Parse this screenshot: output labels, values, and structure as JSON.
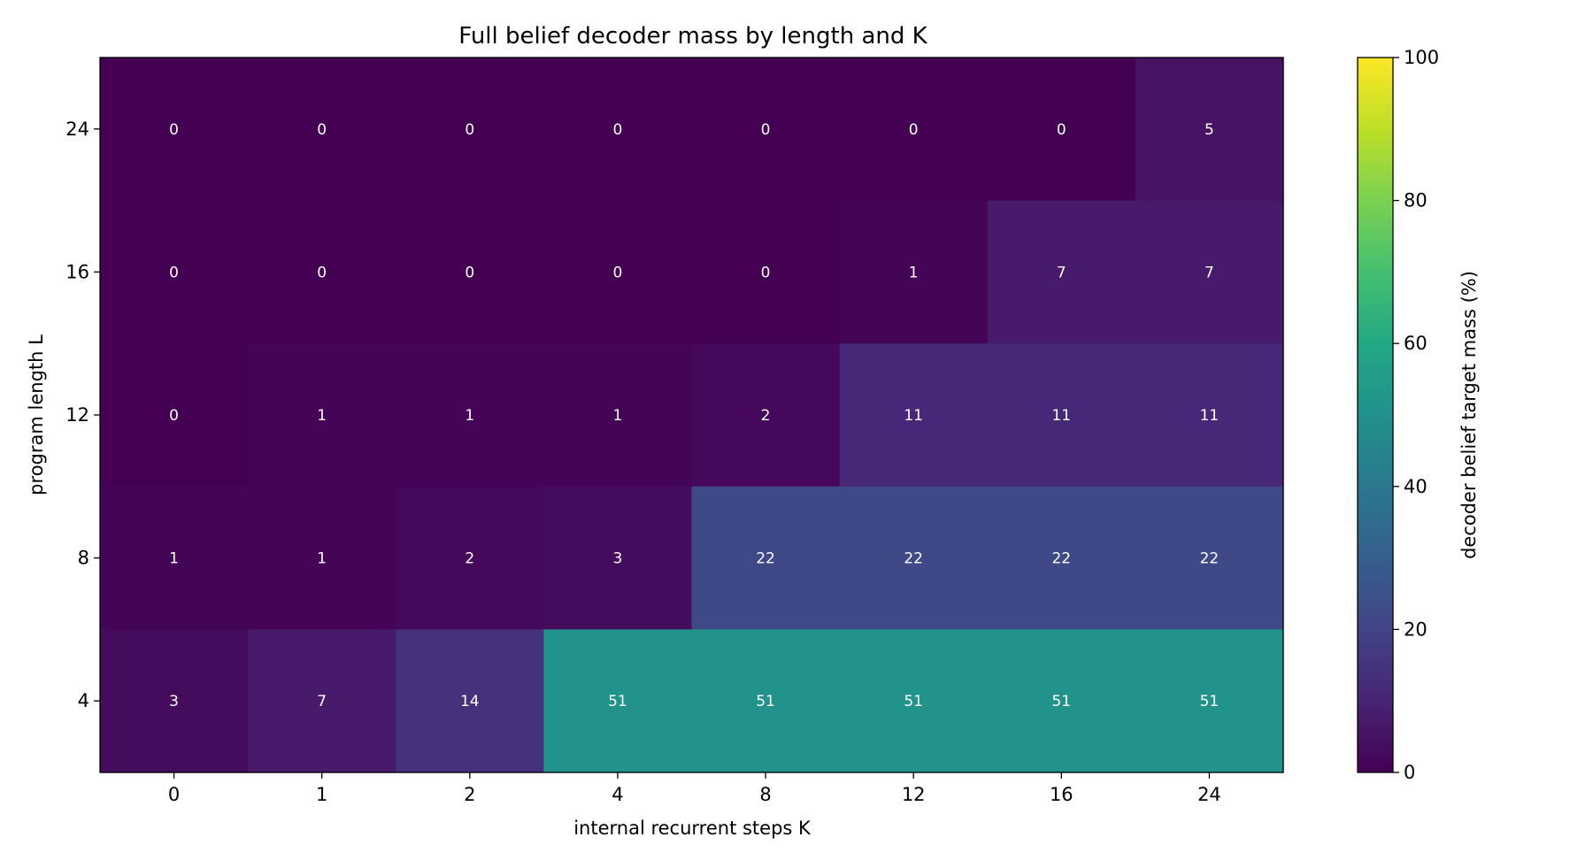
{
  "chart_data": {
    "type": "heatmap",
    "title": "Full belief decoder mass by length and K",
    "xlabel": "internal recurrent steps K",
    "ylabel": "program length L",
    "x_categories": [
      "0",
      "1",
      "2",
      "4",
      "8",
      "12",
      "16",
      "24"
    ],
    "y_categories_top_to_bottom": [
      "24",
      "16",
      "12",
      "8",
      "4"
    ],
    "values_top_to_bottom": [
      [
        0,
        0,
        0,
        0,
        0,
        0,
        0,
        5
      ],
      [
        0,
        0,
        0,
        0,
        0,
        1,
        7,
        7
      ],
      [
        0,
        1,
        1,
        1,
        2,
        11,
        11,
        11
      ],
      [
        1,
        1,
        2,
        3,
        22,
        22,
        22,
        22
      ],
      [
        3,
        7,
        14,
        51,
        51,
        51,
        51,
        51
      ]
    ],
    "value_range": [
      0,
      100
    ],
    "colormap": "viridis",
    "colorbar": {
      "label": "decoder belief target mass (%)",
      "ticks": [
        "0",
        "20",
        "40",
        "60",
        "80",
        "100"
      ],
      "tick_values": [
        0,
        20,
        40,
        60,
        80,
        100
      ]
    },
    "grid": false
  }
}
